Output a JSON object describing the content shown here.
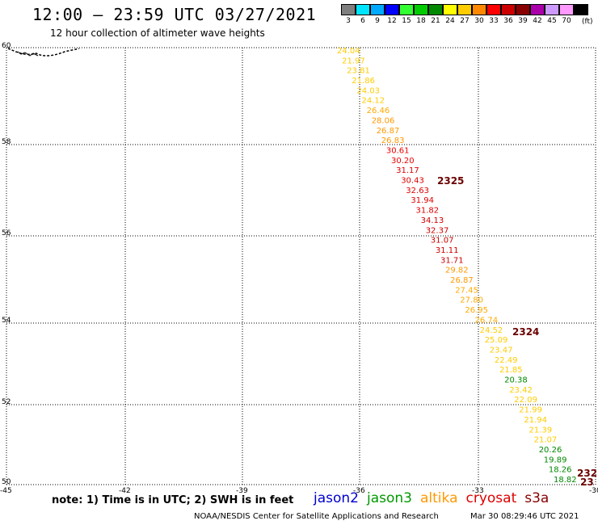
{
  "header": {
    "title": "12:00 — 23:59 UTC 03/27/2021",
    "subtitle": "12 hour collection of altimeter wave heights"
  },
  "colorbar": {
    "unit": "(ft)",
    "bins": [
      {
        "label": "3",
        "color": "#7f7f7f"
      },
      {
        "label": "6",
        "color": "#00e5ff"
      },
      {
        "label": "9",
        "color": "#00aaff"
      },
      {
        "label": "12",
        "color": "#0000ff"
      },
      {
        "label": "15",
        "color": "#33ff33"
      },
      {
        "label": "18",
        "color": "#00cc00"
      },
      {
        "label": "21",
        "color": "#008800"
      },
      {
        "label": "24",
        "color": "#ffff00"
      },
      {
        "label": "27",
        "color": "#ffcc00"
      },
      {
        "label": "30",
        "color": "#ff8800"
      },
      {
        "label": "33",
        "color": "#ff0000"
      },
      {
        "label": "36",
        "color": "#cc0000"
      },
      {
        "label": "39",
        "color": "#880000"
      },
      {
        "label": "42",
        "color": "#aa00aa"
      },
      {
        "label": "45",
        "color": "#cc99ff"
      },
      {
        "label": "70",
        "color": "#ff99ff"
      },
      {
        "label": "",
        "color": "#000000"
      }
    ]
  },
  "axes": {
    "lat_labels": [
      "60",
      "58",
      "56",
      "54",
      "52",
      "50"
    ],
    "lon_labels": [
      "-45",
      "-42",
      "-39",
      "-36",
      "-33",
      "-30"
    ]
  },
  "track_labels": [
    "2325",
    "2324",
    "232",
    "23"
  ],
  "wave_heights": [
    {
      "value": "24.04",
      "color": "#ffcc00"
    },
    {
      "value": "21.97",
      "color": "#ffcc00"
    },
    {
      "value": "23.81",
      "color": "#ffcc00"
    },
    {
      "value": "21.86",
      "color": "#ffcc00"
    },
    {
      "value": "24.03",
      "color": "#ffcc00"
    },
    {
      "value": "24.12",
      "color": "#ffcc00"
    },
    {
      "value": "26.46",
      "color": "#ffaa00"
    },
    {
      "value": "28.06",
      "color": "#ff9900"
    },
    {
      "value": "26.87",
      "color": "#ff9900"
    },
    {
      "value": "26.83",
      "color": "#ff9900"
    },
    {
      "value": "30.61",
      "color": "#ee0000"
    },
    {
      "value": "30.20",
      "color": "#ee0000"
    },
    {
      "value": "31.17",
      "color": "#dd0000"
    },
    {
      "value": "30.43",
      "color": "#dd0000"
    },
    {
      "value": "32.63",
      "color": "#dd0000"
    },
    {
      "value": "31.94",
      "color": "#dd0000"
    },
    {
      "value": "31.82",
      "color": "#dd0000"
    },
    {
      "value": "34.13",
      "color": "#cc0000"
    },
    {
      "value": "32.37",
      "color": "#cc0000"
    },
    {
      "value": "31.07",
      "color": "#cc0000"
    },
    {
      "value": "31.11",
      "color": "#cc0000"
    },
    {
      "value": "31.71",
      "color": "#cc0000"
    },
    {
      "value": "29.82",
      "color": "#ff9900"
    },
    {
      "value": "26.87",
      "color": "#ff9900"
    },
    {
      "value": "27.45",
      "color": "#ffaa00"
    },
    {
      "value": "27.80",
      "color": "#ffaa00"
    },
    {
      "value": "26.95",
      "color": "#ffaa00"
    },
    {
      "value": "26.74",
      "color": "#ffaa00"
    },
    {
      "value": "24.52",
      "color": "#ffcc00"
    },
    {
      "value": "25.09",
      "color": "#ffcc00"
    },
    {
      "value": "23.47",
      "color": "#ffcc00"
    },
    {
      "value": "22.49",
      "color": "#ffcc00"
    },
    {
      "value": "21.85",
      "color": "#ffcc00"
    },
    {
      "value": "20.38",
      "color": "#008800"
    },
    {
      "value": "23.42",
      "color": "#ffcc00"
    },
    {
      "value": "22.09",
      "color": "#ffcc00"
    },
    {
      "value": "21.99",
      "color": "#ffcc00"
    },
    {
      "value": "21.94",
      "color": "#ffcc00"
    },
    {
      "value": "21.39",
      "color": "#ffcc00"
    },
    {
      "value": "21.07",
      "color": "#ffcc00"
    },
    {
      "value": "20.26",
      "color": "#008800"
    },
    {
      "value": "19.89",
      "color": "#008800"
    },
    {
      "value": "18.26",
      "color": "#008800"
    },
    {
      "value": "18.82",
      "color": "#008800"
    }
  ],
  "footer": {
    "note": "note: 1) Time is in UTC; 2) SWH is in feet",
    "legend": [
      {
        "label": "jason2",
        "color": "#0000cc"
      },
      {
        "label": "jason3",
        "color": "#009900"
      },
      {
        "label": "altika",
        "color": "#ff9900"
      },
      {
        "label": "cryosat",
        "color": "#dd0000"
      },
      {
        "label": "s3a",
        "color": "#880000"
      }
    ],
    "credit": "NOAA/NESDIS Center for Satellite Applications and Research",
    "timestamp": "Mar 30 08:29:46 UTC 2021"
  }
}
